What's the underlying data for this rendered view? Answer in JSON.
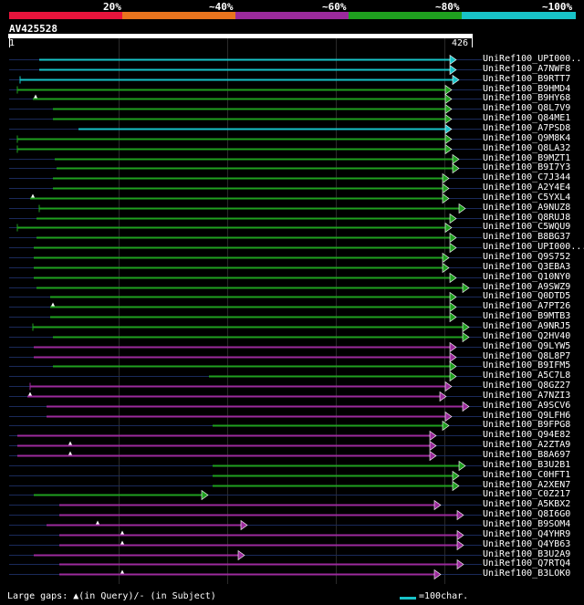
{
  "legend": {
    "labels": [
      "20%",
      "~40%",
      "~60%",
      "~80%",
      "~100%"
    ],
    "colors": [
      "#e8143c",
      "#e8741e",
      "#9b2a9c",
      "#1fa01f",
      "#18c3c8"
    ]
  },
  "title": "AV425528",
  "scale": {
    "start": "1",
    "end": "426"
  },
  "hits": [
    {
      "label": "UniRef100_UPI000..",
      "color": "#18c3c8",
      "x1": 43,
      "x2": 500,
      "lead": 1
    },
    {
      "label": "UniRef100_A7NWF8",
      "color": "#18c3c8",
      "x1": 43,
      "x2": 500,
      "lead": 1
    },
    {
      "label": "UniRef100_B9RTT7",
      "color": "#18c3c8",
      "x1": 22,
      "x2": 503,
      "lead": 1,
      "lstub": 1
    },
    {
      "label": "UniRef100_B9HMD4",
      "color": "#1fa01f",
      "x1": 19,
      "x2": 495,
      "lead": 1,
      "lstub": 1
    },
    {
      "label": "UniRef100_B9HY68",
      "color": "#1fa01f",
      "x1": 36,
      "x2": 495,
      "lead": 1,
      "marker": "qtri"
    },
    {
      "label": "UniRef100_Q8L7V9",
      "color": "#1fa01f",
      "x1": 58,
      "x2": 495,
      "lead": 1
    },
    {
      "label": "UniRef100_Q84ME1",
      "color": "#1fa01f",
      "x1": 58,
      "x2": 495,
      "lead": 1
    },
    {
      "label": "UniRef100_A7PSD8",
      "color": "#18c3c8",
      "x1": 86,
      "x2": 495,
      "lead": 1
    },
    {
      "label": "UniRef100_Q9M8K4",
      "color": "#1fa01f",
      "x1": 19,
      "x2": 495,
      "lead": 1,
      "lstub": 1
    },
    {
      "label": "UniRef100_Q8LA32",
      "color": "#1fa01f",
      "x1": 19,
      "x2": 495,
      "lead": 1,
      "lstub": 1
    },
    {
      "label": "UniRef100_B9MZT1",
      "color": "#1fa01f",
      "x1": 60,
      "x2": 503,
      "lead": 1
    },
    {
      "label": "UniRef100_B9I7Y3",
      "color": "#1fa01f",
      "x1": 62,
      "x2": 503,
      "lead": 1
    },
    {
      "label": "UniRef100_C7J344",
      "color": "#1fa01f",
      "x1": 58,
      "x2": 492,
      "lead": 1
    },
    {
      "label": "UniRef100_A2Y4E4",
      "color": "#1fa01f",
      "x1": 58,
      "x2": 492,
      "lead": 1
    },
    {
      "label": "UniRef100_C5YXL4",
      "color": "#1fa01f",
      "x1": 33,
      "x2": 492,
      "lead": 1,
      "marker": "qtri"
    },
    {
      "label": "UniRef100_A9NUZ8",
      "color": "#1fa01f",
      "x1": 43,
      "x2": 510,
      "lead": 1,
      "lstub": 1
    },
    {
      "label": "UniRef100_Q8RUJ8",
      "color": "#1fa01f",
      "x1": 40,
      "x2": 500,
      "lead": 1
    },
    {
      "label": "UniRef100_C5WQU9",
      "color": "#1fa01f",
      "x1": 19,
      "x2": 495,
      "lead": 1,
      "lstub": 1
    },
    {
      "label": "UniRef100_B8BG37",
      "color": "#1fa01f",
      "x1": 40,
      "x2": 500,
      "lead": 1
    },
    {
      "label": "UniRef100_UPI000...",
      "color": "#1fa01f",
      "x1": 37,
      "x2": 500,
      "lead": 1
    },
    {
      "label": "UniRef100_Q9S752",
      "color": "#1fa01f",
      "x1": 37,
      "x2": 492,
      "lead": 1
    },
    {
      "label": "UniRef100_Q3EBA3",
      "color": "#1fa01f",
      "x1": 37,
      "x2": 492,
      "lead": 1
    },
    {
      "label": "UniRef100_Q10NY0",
      "color": "#1fa01f",
      "x1": 37,
      "x2": 500,
      "lead": 1
    },
    {
      "label": "UniRef100_A9SWZ9",
      "color": "#1fa01f",
      "x1": 40,
      "x2": 514,
      "lead": 1
    },
    {
      "label": "UniRef100_Q0DTD5",
      "color": "#1fa01f",
      "x1": 55,
      "x2": 500,
      "lead": 1
    },
    {
      "label": "UniRef100_A7PT26",
      "color": "#1fa01f",
      "x1": 55,
      "x2": 500,
      "lead": 1,
      "marker": "qtri"
    },
    {
      "label": "UniRef100_B9MTB3",
      "color": "#1fa01f",
      "x1": 55,
      "x2": 500,
      "lead": 1
    },
    {
      "label": "UniRef100_A9NRJ5",
      "color": "#1fa01f",
      "x1": 36,
      "x2": 514,
      "lead": 1,
      "lstub": 1
    },
    {
      "label": "UniRef100_Q2HV40",
      "color": "#1fa01f",
      "x1": 58,
      "x2": 514,
      "lead": 1
    },
    {
      "label": "UniRef100_Q9LYW5",
      "color": "#9b2a9c",
      "x1": 37,
      "x2": 500,
      "lead": 1
    },
    {
      "label": "UniRef100_Q8L8P7",
      "color": "#9b2a9c",
      "x1": 37,
      "x2": 500,
      "lead": 1
    },
    {
      "label": "UniRef100_B9IFM5",
      "color": "#1fa01f",
      "x1": 58,
      "x2": 500,
      "lead": 1
    },
    {
      "label": "UniRef100_A5C7L8",
      "color": "#1fa01f",
      "x1": 229,
      "x2": 500,
      "lead": 1
    },
    {
      "label": "UniRef100_Q8GZ27",
      "color": "#9b2a9c",
      "x1": 33,
      "x2": 495,
      "lead": 1,
      "lstub": 1
    },
    {
      "label": "UniRef100_A7NZI3",
      "color": "#9b2a9c",
      "x1": 30,
      "x2": 489,
      "lead": 1,
      "marker": "qtri"
    },
    {
      "label": "UniRef100_A9SCV6",
      "color": "#9b2a9c",
      "x1": 51,
      "x2": 514,
      "lead": 1
    },
    {
      "label": "UniRef100_Q9LFH6",
      "color": "#9b2a9c",
      "x1": 51,
      "x2": 495,
      "lead": 1
    },
    {
      "label": "UniRef100_B9FPG8",
      "color": "#1fa01f",
      "x1": 233,
      "x2": 492,
      "lead": 1
    },
    {
      "label": "UniRef100_Q94E82",
      "color": "#9b2a9c",
      "x1": 19,
      "x2": 478,
      "lead": 1
    },
    {
      "label": "UniRef100_A2ZTA9",
      "color": "#9b2a9c",
      "x1": 19,
      "x2": 478,
      "lead": 1,
      "marker": "qtri",
      "mx": 77
    },
    {
      "label": "UniRef100_B8A697",
      "color": "#9b2a9c",
      "x1": 19,
      "x2": 478,
      "lead": 1,
      "marker": "qtri",
      "mx": 77
    },
    {
      "label": "UniRef100_B3U2B1",
      "color": "#1fa01f",
      "x1": 233,
      "x2": 510,
      "lead": 1
    },
    {
      "label": "UniRef100_C0HFT1",
      "color": "#1fa01f",
      "x1": 233,
      "x2": 503,
      "lead": 1
    },
    {
      "label": "UniRef100_A2XEN7",
      "color": "#1fa01f",
      "x1": 233,
      "x2": 503,
      "lead": 1
    },
    {
      "label": "UniRef100_C0Z217",
      "color": "#1fa01f",
      "x1": 37,
      "x2": 228,
      "lead": 1
    },
    {
      "label": "UniRef100_A5KBX2",
      "color": "#9b2a9c",
      "x1": 65,
      "x2": 483,
      "lead": 1
    },
    {
      "label": "UniRef100_Q8I6G0",
      "color": "#9b2a9c",
      "x1": 65,
      "x2": 508,
      "lead": 1
    },
    {
      "label": "UniRef100_B9SOM4",
      "color": "#9b2a9c",
      "x1": 51,
      "x2": 271,
      "lead": 1,
      "marker": "qtri",
      "mx": 107
    },
    {
      "label": "UniRef100_Q4YHR9",
      "color": "#9b2a9c",
      "x1": 65,
      "x2": 508,
      "lead": 1,
      "marker": "qtri",
      "mx": 134
    },
    {
      "label": "UniRef100_Q4YB63",
      "color": "#9b2a9c",
      "x1": 65,
      "x2": 508,
      "lead": 1,
      "marker": "qtri",
      "mx": 134
    },
    {
      "label": "UniRef100_B3U2A9",
      "color": "#9b2a9c",
      "x1": 37,
      "x2": 268,
      "lead": 1
    },
    {
      "label": "UniRef100_Q7RTQ4",
      "color": "#9b2a9c",
      "x1": 65,
      "x2": 508,
      "lead": 1
    },
    {
      "label": "UniRef100_B3LOK0",
      "color": "#9b2a9c",
      "x1": 65,
      "x2": 483,
      "lead": 1,
      "marker": "qtri",
      "mx": 134
    }
  ],
  "footer": {
    "text": "Large gaps: ▲(in Query)/- (in Subject)",
    "scale_label": "=100char.",
    "scale_color": "#18c3c8"
  }
}
